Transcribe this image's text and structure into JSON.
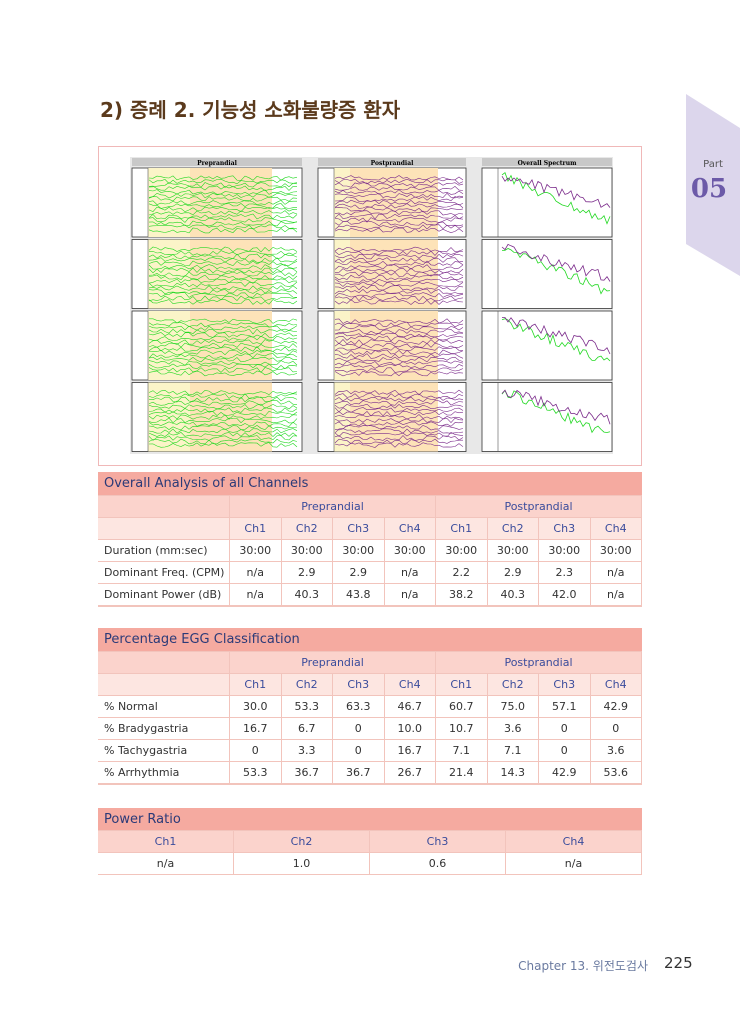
{
  "section_title": "2) 증례 2. 기능성 소화불량증 환자",
  "part": {
    "label": "Part",
    "number": "05"
  },
  "figure": {
    "panels": [
      "Preprandial",
      "Postprandial",
      "Overall Spectrum"
    ]
  },
  "tables": [
    {
      "title": "Overall Analysis of all Channels",
      "groups": [
        "Preprandial",
        "Postprandial"
      ],
      "columns": [
        "Ch1",
        "Ch2",
        "Ch3",
        "Ch4",
        "Ch1",
        "Ch2",
        "Ch3",
        "Ch4"
      ],
      "rows": [
        [
          "Duration (mm:sec)",
          "30:00",
          "30:00",
          "30:00",
          "30:00",
          "30:00",
          "30:00",
          "30:00",
          "30:00"
        ],
        [
          "Dominant Freq. (CPM)",
          "n/a",
          "2.9",
          "2.9",
          "n/a",
          "2.2",
          "2.9",
          "2.3",
          "n/a"
        ],
        [
          "Dominant Power (dB)",
          "n/a",
          "40.3",
          "43.8",
          "n/a",
          "38.2",
          "40.3",
          "42.0",
          "n/a"
        ]
      ]
    },
    {
      "title": "Percentage EGG Classification",
      "groups": [
        "Preprandial",
        "Postprandial"
      ],
      "columns": [
        "Ch1",
        "Ch2",
        "Ch3",
        "Ch4",
        "Ch1",
        "Ch2",
        "Ch3",
        "Ch4"
      ],
      "rows": [
        [
          "% Normal",
          "30.0",
          "53.3",
          "63.3",
          "46.7",
          "60.7",
          "75.0",
          "57.1",
          "42.9"
        ],
        [
          "% Bradygastria",
          "16.7",
          "6.7",
          "0",
          "10.0",
          "10.7",
          "3.6",
          "0",
          "0"
        ],
        [
          "% Tachygastria",
          "0",
          "3.3",
          "0",
          "16.7",
          "7.1",
          "7.1",
          "0",
          "3.6"
        ],
        [
          "% Arrhythmia",
          "53.3",
          "36.7",
          "36.7",
          "26.7",
          "21.4",
          "14.3",
          "42.9",
          "53.6"
        ]
      ]
    },
    {
      "title": "Power Ratio",
      "columns": [
        "Ch1",
        "Ch2",
        "Ch3",
        "Ch4"
      ],
      "rows": [
        [
          "n/a",
          "1.0",
          "0.6",
          "n/a"
        ]
      ]
    }
  ],
  "footer": {
    "chapter": "Chapter 13. 위전도검사",
    "page": "225"
  }
}
